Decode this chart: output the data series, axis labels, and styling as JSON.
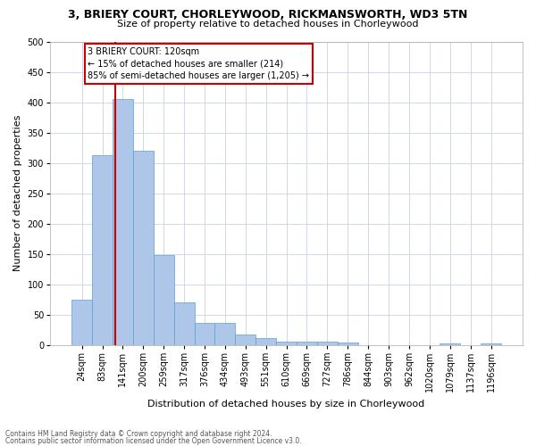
{
  "title": "3, BRIERY COURT, CHORLEYWOOD, RICKMANSWORTH, WD3 5TN",
  "subtitle": "Size of property relative to detached houses in Chorleywood",
  "xlabel": "Distribution of detached houses by size in Chorleywood",
  "ylabel": "Number of detached properties",
  "bar_color": "#aec6e8",
  "bar_edge_color": "#5a9fd4",
  "vline_color": "#cc0000",
  "vline_x": 2.0,
  "categories": [
    "24sqm",
    "83sqm",
    "141sqm",
    "200sqm",
    "259sqm",
    "317sqm",
    "376sqm",
    "434sqm",
    "493sqm",
    "551sqm",
    "610sqm",
    "669sqm",
    "727sqm",
    "786sqm",
    "844sqm",
    "903sqm",
    "962sqm",
    "1020sqm",
    "1079sqm",
    "1137sqm",
    "1196sqm"
  ],
  "values": [
    75,
    312,
    405,
    320,
    148,
    70,
    36,
    36,
    18,
    12,
    5,
    5,
    5,
    4,
    0,
    0,
    0,
    0,
    3,
    0,
    3
  ],
  "annotation_text": "3 BRIERY COURT: 120sqm\n← 15% of detached houses are smaller (214)\n85% of semi-detached houses are larger (1,205) →",
  "annotation_box_color": "#ffffff",
  "annotation_box_edge": "#cc0000",
  "ylim": [
    0,
    500
  ],
  "yticks": [
    0,
    50,
    100,
    150,
    200,
    250,
    300,
    350,
    400,
    450,
    500
  ],
  "footer1": "Contains HM Land Registry data © Crown copyright and database right 2024.",
  "footer2": "Contains public sector information licensed under the Open Government Licence v3.0.",
  "bg_color": "#ffffff",
  "grid_color": "#d0d8e8",
  "title_fontsize": 9,
  "subtitle_fontsize": 8,
  "xlabel_fontsize": 8,
  "ylabel_fontsize": 8,
  "tick_fontsize": 7,
  "annot_fontsize": 7,
  "footer_fontsize": 5.5
}
